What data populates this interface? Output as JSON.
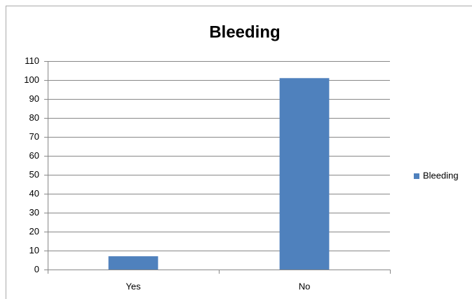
{
  "chart_data": {
    "type": "bar",
    "title": "Bleeding",
    "categories": [
      "Yes",
      "No"
    ],
    "series": [
      {
        "name": "Bleeding",
        "color": "#4f81bd",
        "values": [
          7,
          101
        ]
      }
    ],
    "ylim": [
      0,
      110
    ],
    "yticks": [
      0,
      10,
      20,
      30,
      40,
      50,
      60,
      70,
      80,
      90,
      100,
      110
    ],
    "grid": true,
    "legend": "right"
  }
}
